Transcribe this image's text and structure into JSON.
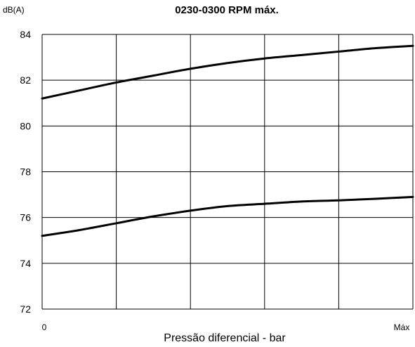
{
  "chart_data": {
    "type": "line",
    "title": "0230-0300 RPM máx.",
    "ylabel": "dB(A)",
    "xlabel": "Pressão diferencial - bar",
    "x_tick_labels": [
      "0",
      "Máx"
    ],
    "y_ticks": [
      72,
      74,
      76,
      78,
      80,
      82,
      84
    ],
    "ylim": [
      72,
      84
    ],
    "xlim": [
      0,
      1
    ],
    "grid": true,
    "x": [
      0,
      0.1,
      0.2,
      0.3,
      0.4,
      0.5,
      0.6,
      0.7,
      0.8,
      0.9,
      1.0
    ],
    "series": [
      {
        "values": [
          81.2,
          81.55,
          81.9,
          82.2,
          82.5,
          82.75,
          82.95,
          83.1,
          83.25,
          83.4,
          83.5
        ]
      },
      {
        "values": [
          75.2,
          75.45,
          75.75,
          76.05,
          76.3,
          76.5,
          76.6,
          76.7,
          76.75,
          76.82,
          76.9
        ]
      }
    ],
    "colors": {
      "line": "#000000",
      "grid": "#000000"
    }
  }
}
